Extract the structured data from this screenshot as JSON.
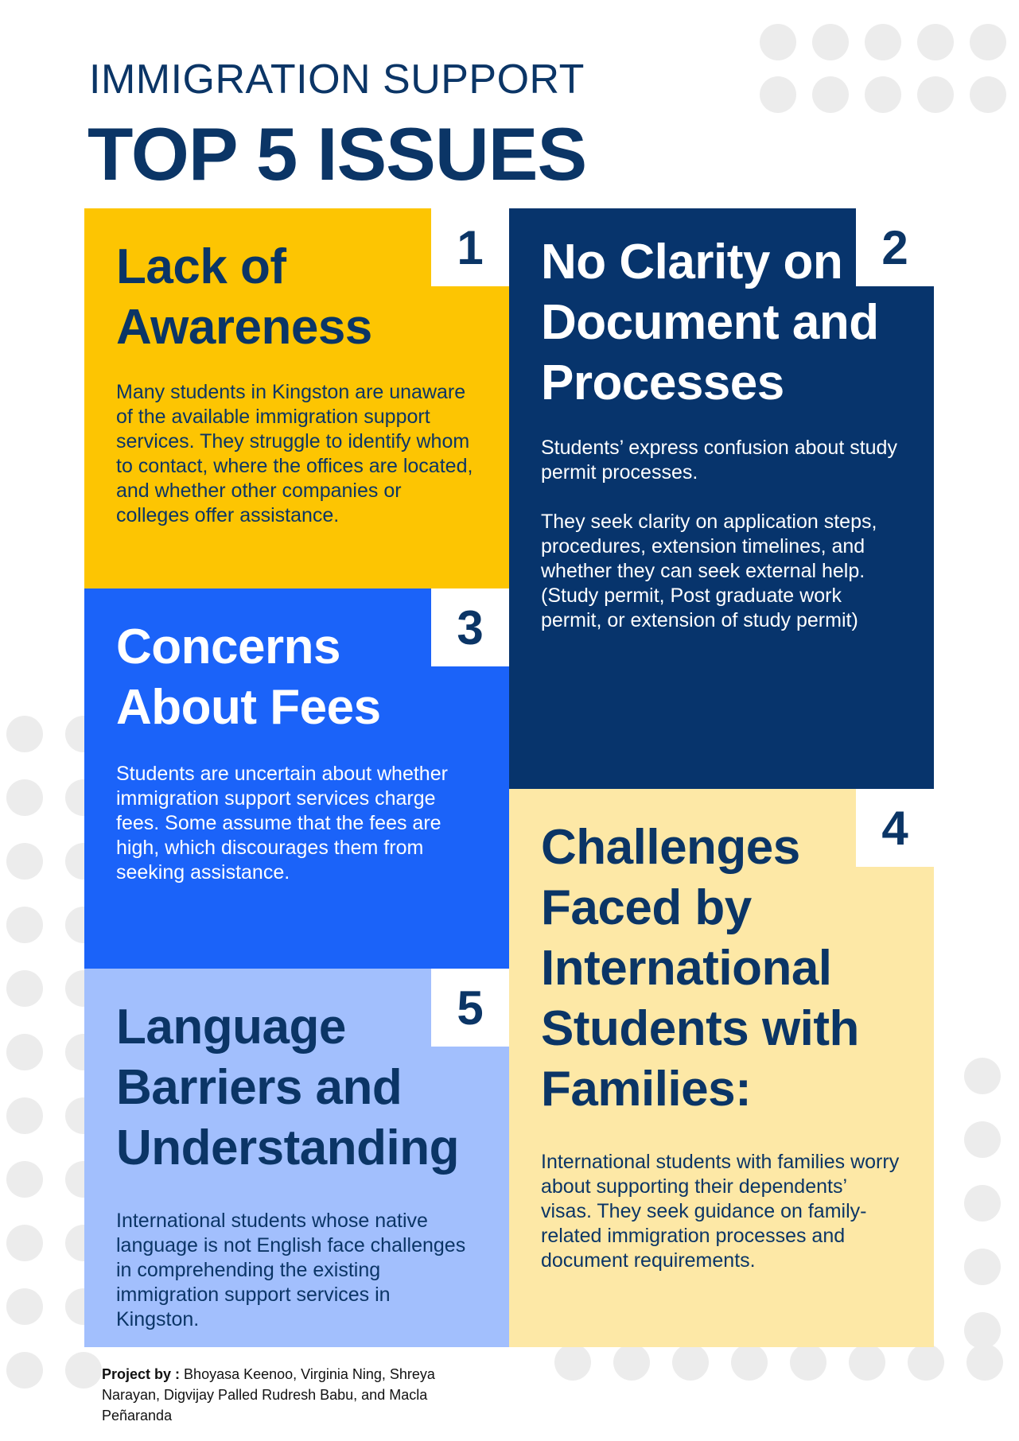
{
  "header": {
    "subtitle": "IMMIGRATION SUPPORT",
    "title": "TOP 5 ISSUES"
  },
  "issues": [
    {
      "number": "1",
      "title_lines": [
        "Lack of",
        "Awareness"
      ],
      "body": "Many students in Kingston are unaware of the available immigration support services. They struggle to identify whom to contact, where the offices are located, and whether other companies or colleges offer assistance."
    },
    {
      "number": "2",
      "title_lines": [
        "No Clarity on",
        "Document and",
        "Processes"
      ],
      "body": "Students’ express confusion about study permit processes.",
      "body2": "They seek clarity on application steps, procedures, extension timelines, and whether they can seek external help. (Study permit, Post graduate work permit, or extension of study permit)"
    },
    {
      "number": "3",
      "title_lines": [
        "Concerns",
        "About Fees"
      ],
      "body": "Students are uncertain about whether immigration support services charge fees. Some assume that the fees are high, which discourages them from seeking assistance."
    },
    {
      "number": "4",
      "title_lines": [
        "Challenges",
        "Faced by",
        "International",
        "Students with",
        "Families:"
      ],
      "body": "International students with families worry about supporting their dependents’ visas. They seek guidance on family-related immigration processes and document requirements."
    },
    {
      "number": "5",
      "title_lines": [
        "Language",
        "Barriers and",
        "Understanding"
      ],
      "body": "International students whose native language is not English face challenges in comprehending the existing immigration support services in Kingston."
    }
  ],
  "footer": {
    "label": "Project by :",
    "names": "Bhoyasa Keenoo, Virginia Ning, Shreya Narayan, Digvijay Palled Rudresh Babu, and Macla Peñaranda"
  },
  "colors": {
    "navy": "#0b3566",
    "yellow": "#fdc502",
    "blue": "#1b63f9",
    "light_yellow": "#fde8a6",
    "light_blue": "#a2bffd"
  }
}
